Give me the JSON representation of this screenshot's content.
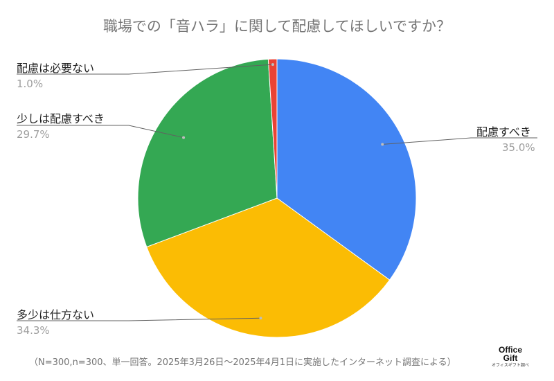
{
  "chart_data": {
    "type": "pie",
    "title": "職場での「音ハラ」に関して配慮してほしいですか？",
    "slices": [
      {
        "label": "配慮すべき",
        "value": 35.0,
        "display": "35.0%",
        "color": "#4285f4"
      },
      {
        "label": "多少は仕方ない",
        "value": 34.3,
        "display": "34.3%",
        "color": "#fbbc04"
      },
      {
        "label": "少しは配慮すべき",
        "value": 29.7,
        "display": "29.7%",
        "color": "#34a853"
      },
      {
        "label": "配慮は必要ない",
        "value": 1.0,
        "display": "1.0%",
        "color": "#ea4335"
      }
    ],
    "start_angle_deg": 0,
    "direction": "clockwise",
    "legend": "none"
  },
  "footnote": "（N=300,n=300、単一回答。2025年3月26日〜2025年4月1日に実施したインターネット調査による）",
  "logo": {
    "line1": "Office",
    "line2": "Gift",
    "line3": "オフィスギフト調べ"
  }
}
